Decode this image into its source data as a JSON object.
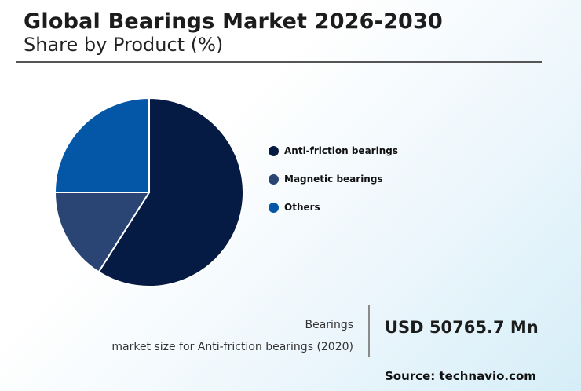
{
  "header": {
    "title": "Global Bearings Market 2026-2030",
    "subtitle": "Share by Product (%)"
  },
  "chart_data": {
    "type": "pie",
    "categories": [
      "Anti-friction bearings",
      "Magnetic bearings",
      "Others"
    ],
    "values": [
      59,
      16,
      25
    ],
    "colors": [
      "#061b44",
      "#2a4474",
      "#0457a6"
    ],
    "legend_position": "right"
  },
  "metric": {
    "line1": "Bearings",
    "line2": "market size for Anti-friction bearings (2020)",
    "value": "USD 50765.7 Mn"
  },
  "source": "Source: technavio.com"
}
